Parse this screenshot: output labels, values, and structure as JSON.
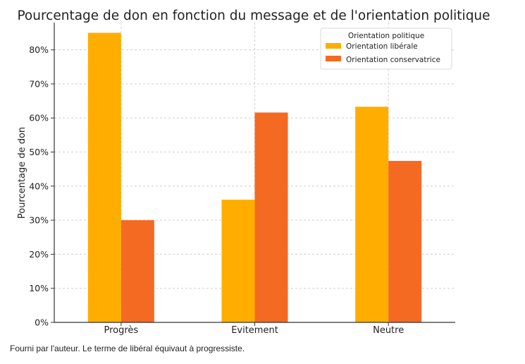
{
  "chart_data": {
    "type": "bar",
    "title": "Pourcentage de don en fonction du message et de l'orientation politique",
    "xlabel": "",
    "ylabel": "Pourcentage de don",
    "categories": [
      "Progrès",
      "Evitement",
      "Neutre"
    ],
    "series": [
      {
        "name": "Orientation libérale",
        "color": "#ffae00",
        "values": [
          85,
          36,
          63.3
        ]
      },
      {
        "name": "Orientation conservatrice",
        "color": "#f46a22",
        "values": [
          30,
          61.6,
          47.4
        ]
      }
    ],
    "ylim": [
      0,
      88
    ],
    "yticks": [
      0,
      10,
      20,
      30,
      40,
      50,
      60,
      70,
      80
    ],
    "ytick_labels": [
      "0%",
      "10%",
      "20%",
      "30%",
      "40%",
      "50%",
      "60%",
      "70%",
      "80%"
    ],
    "grid": true,
    "legend_title": "Orientation politique",
    "legend_position": "top-right"
  },
  "caption": "Fourni par l'auteur. Le terme de libéral équivaut à progressiste."
}
